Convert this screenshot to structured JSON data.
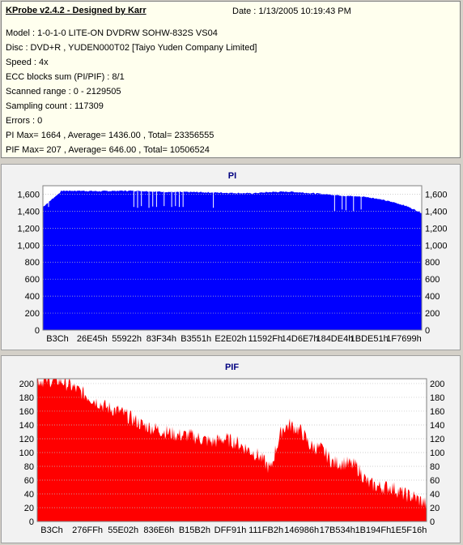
{
  "app": {
    "title": "KProbe v2.4.2 - Designed by Karr",
    "date": "Date : 1/13/2005 10:19:43 PM"
  },
  "info": {
    "lines": [
      "Model : 1-0-1-0 LITE-ON DVDRW SOHW-832S  VS04",
      "Disc : DVD+R , YUDEN000T02 [Taiyo Yuden Company Limited]",
      "Speed : 4x",
      "ECC blocks sum (PI/PIF) : 8/1",
      "Scanned range : 0 - 2129505",
      "Sampling count : 117309",
      "Errors : 0",
      "PI Max= 1664 , Average= 1436.00 , Total= 23356555",
      "PIF Max= 207 , Average= 646.00 , Total= 10506524"
    ]
  },
  "colors": {
    "pi_fill": "#0000ff",
    "pif_fill": "#ff0000",
    "plot_bg": "#ffffff",
    "grid": "#c0c0c0"
  },
  "chart_data": [
    {
      "type": "area",
      "title": "PI",
      "xlabel": "",
      "ylabel": "",
      "ylim": [
        0,
        1700
      ],
      "y_ticks": [
        0,
        200,
        400,
        600,
        800,
        "1,000",
        "1,200",
        "1,400",
        "1,600"
      ],
      "y_tick_values": [
        0,
        200,
        400,
        600,
        800,
        1000,
        1200,
        1400,
        1600
      ],
      "x_tick_labels": [
        "B3Ch",
        "26E45h",
        "55922h",
        "83F34h",
        "B3551h",
        "E2E02h",
        "11592Fh",
        "14D6E7h",
        "184DE4h",
        "1BDE51h",
        "1F7699h"
      ],
      "grid": true,
      "series": [
        {
          "x": [
            0,
            0.05,
            0.1,
            0.15,
            0.2,
            0.25,
            0.3,
            0.35,
            0.4,
            0.45,
            0.5,
            0.55,
            0.6,
            0.65,
            0.7,
            0.75,
            0.8,
            0.85,
            0.88,
            0.9,
            0.93,
            0.96,
            0.98,
            1.0
          ],
          "values": [
            1450,
            1640,
            1640,
            1635,
            1640,
            1640,
            1630,
            1625,
            1625,
            1620,
            1615,
            1610,
            1625,
            1630,
            1615,
            1600,
            1580,
            1570,
            1550,
            1530,
            1500,
            1460,
            1420,
            1380
          ],
          "dips": [
            [
              0.015,
              1450
            ],
            [
              0.24,
              1450
            ],
            [
              0.25,
              1440
            ],
            [
              0.26,
              1460
            ],
            [
              0.28,
              1440
            ],
            [
              0.29,
              1455
            ],
            [
              0.3,
              1450
            ],
            [
              0.32,
              1460
            ],
            [
              0.34,
              1450
            ],
            [
              0.35,
              1460
            ],
            [
              0.36,
              1450
            ],
            [
              0.37,
              1450
            ],
            [
              0.45,
              1440
            ],
            [
              0.77,
              1400
            ],
            [
              0.79,
              1420
            ],
            [
              0.8,
              1410
            ],
            [
              0.82,
              1400
            ],
            [
              0.84,
              1420
            ]
          ]
        }
      ]
    },
    {
      "type": "area",
      "title": "PIF",
      "xlabel": "",
      "ylabel": "",
      "ylim": [
        0,
        207
      ],
      "y_ticks": [
        0,
        20,
        40,
        60,
        80,
        100,
        120,
        140,
        160,
        180,
        200
      ],
      "y_tick_values": [
        0,
        20,
        40,
        60,
        80,
        100,
        120,
        140,
        160,
        180,
        200
      ],
      "x_tick_labels": [
        "B3Ch",
        "276FFh",
        "55E02h",
        "836E6h",
        "B15B2h",
        "DFF91h",
        "111FB2h",
        "146986h",
        "17B534h",
        "1B194Fh",
        "1E5F16h"
      ],
      "grid": true,
      "series": [
        {
          "x": [
            0,
            0.03,
            0.06,
            0.09,
            0.12,
            0.15,
            0.18,
            0.21,
            0.24,
            0.27,
            0.3,
            0.33,
            0.36,
            0.39,
            0.42,
            0.45,
            0.48,
            0.51,
            0.54,
            0.57,
            0.6,
            0.61,
            0.63,
            0.65,
            0.68,
            0.7,
            0.73,
            0.76,
            0.79,
            0.82,
            0.85,
            0.88,
            0.91,
            0.94,
            0.97,
            1.0
          ],
          "values": [
            205,
            205,
            205,
            195,
            185,
            175,
            165,
            160,
            150,
            140,
            135,
            130,
            125,
            125,
            120,
            115,
            120,
            115,
            105,
            95,
            75,
            100,
            135,
            140,
            130,
            110,
            105,
            85,
            85,
            80,
            55,
            50,
            50,
            40,
            35,
            25
          ]
        }
      ]
    }
  ]
}
